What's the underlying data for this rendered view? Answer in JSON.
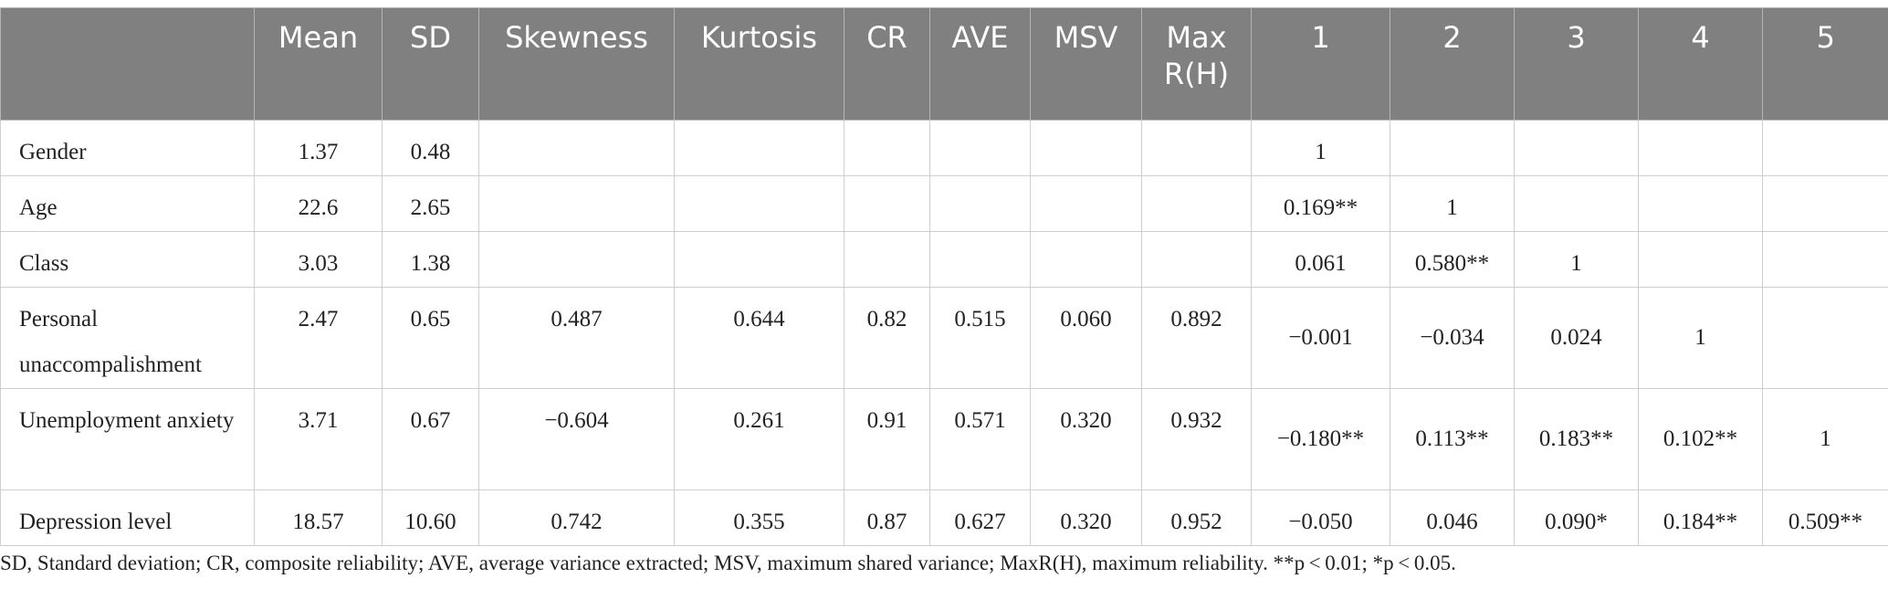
{
  "headers": [
    "",
    "Mean",
    "SD",
    "Skewness",
    "Kurtosis",
    "CR",
    "AVE",
    "MSV",
    "Max R(H)",
    "1",
    "2",
    "3",
    "4",
    "5"
  ],
  "rows": [
    {
      "label": "Gender",
      "cells": [
        "1.37",
        "0.48",
        "",
        "",
        "",
        "",
        "",
        "",
        "1",
        "",
        "",
        "",
        ""
      ]
    },
    {
      "label": "Age",
      "cells": [
        "22.6",
        "2.65",
        "",
        "",
        "",
        "",
        "",
        "",
        "0.169**",
        "1",
        "",
        "",
        ""
      ]
    },
    {
      "label": "Class",
      "cells": [
        "3.03",
        "1.38",
        "",
        "",
        "",
        "",
        "",
        "",
        "0.061",
        "0.580**",
        "1",
        "",
        ""
      ]
    },
    {
      "label": "Personal unaccompalishment",
      "cells": [
        "2.47",
        "0.65",
        "0.487",
        "0.644",
        "0.82",
        "0.515",
        "0.060",
        "0.892",
        "−0.001",
        "−0.034",
        "0.024",
        "1",
        ""
      ]
    },
    {
      "label": "Unemployment anxiety",
      "cells": [
        "3.71",
        "0.67",
        "−0.604",
        "0.261",
        "0.91",
        "0.571",
        "0.320",
        "0.932",
        "−0.180**",
        "0.113**",
        "0.183**",
        "0.102**",
        "1"
      ]
    },
    {
      "label": "Depression level",
      "cells": [
        "18.57",
        "10.60",
        "0.742",
        "0.355",
        "0.87",
        "0.627",
        "0.320",
        "0.952",
        "−0.050",
        "0.046",
        "0.090*",
        "0.184**",
        "0.509**"
      ]
    }
  ],
  "footnote": "SD, Standard deviation; CR, composite reliability; AVE, average variance extracted; MSV, maximum shared variance; MaxR(H), maximum reliability. **p < 0.01; *p < 0.05."
}
